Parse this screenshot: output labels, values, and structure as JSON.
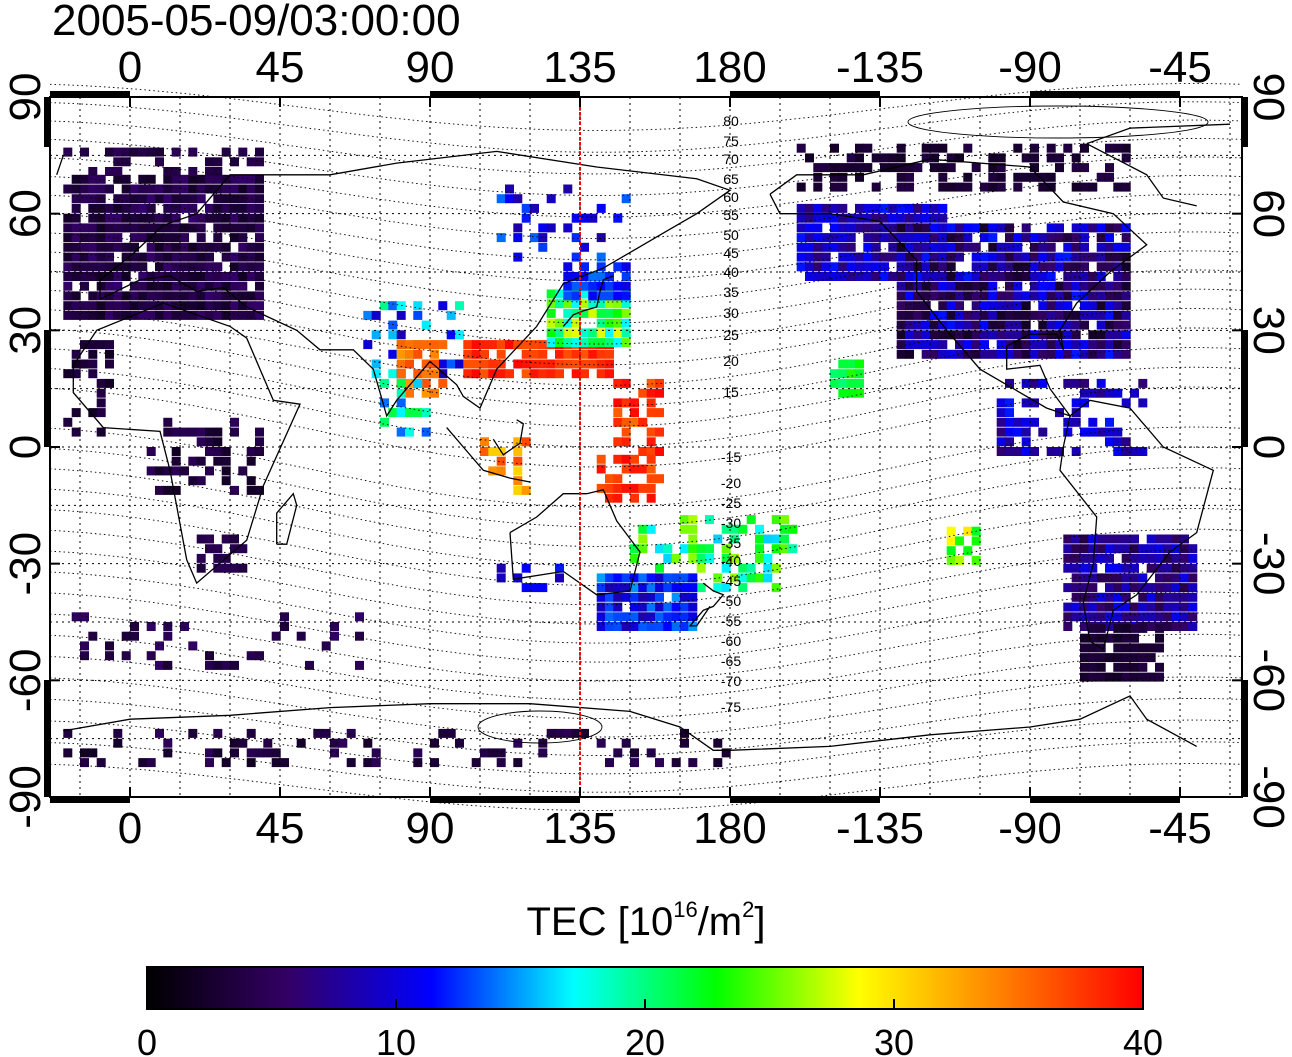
{
  "title": "2005-05-09/03:00:00",
  "map": {
    "x_axis_ticks": [
      "0",
      "45",
      "90",
      "135",
      "180",
      "-135",
      "-90",
      "-45"
    ],
    "y_axis_ticks": [
      "90",
      "60",
      "30",
      "0",
      "-30",
      "-60",
      "-90"
    ],
    "reference_longitude": 135,
    "reference_line_color": "#ff0000",
    "magnetic_latitude_labels": [
      "80",
      "75",
      "70",
      "65",
      "60",
      "55",
      "50",
      "45",
      "40",
      "35",
      "30",
      "25",
      "20",
      "15",
      "-15",
      "-20",
      "-25",
      "-30",
      "-35",
      "-40",
      "-45",
      "-50",
      "-55",
      "-60",
      "-65",
      "-70",
      "-75"
    ]
  },
  "colorbar": {
    "label_prefix": "TEC  [10",
    "label_exp1": "16",
    "label_mid": "/m",
    "label_exp2": "2",
    "label_suffix": "]",
    "ticks": [
      "0",
      "10",
      "20",
      "30",
      "40"
    ],
    "min": 0,
    "max": 40,
    "colormap": [
      "#000000",
      "#330066",
      "#0000ff",
      "#00ffff",
      "#00ff00",
      "#ffff00",
      "#ff8000",
      "#ff0000"
    ]
  }
}
